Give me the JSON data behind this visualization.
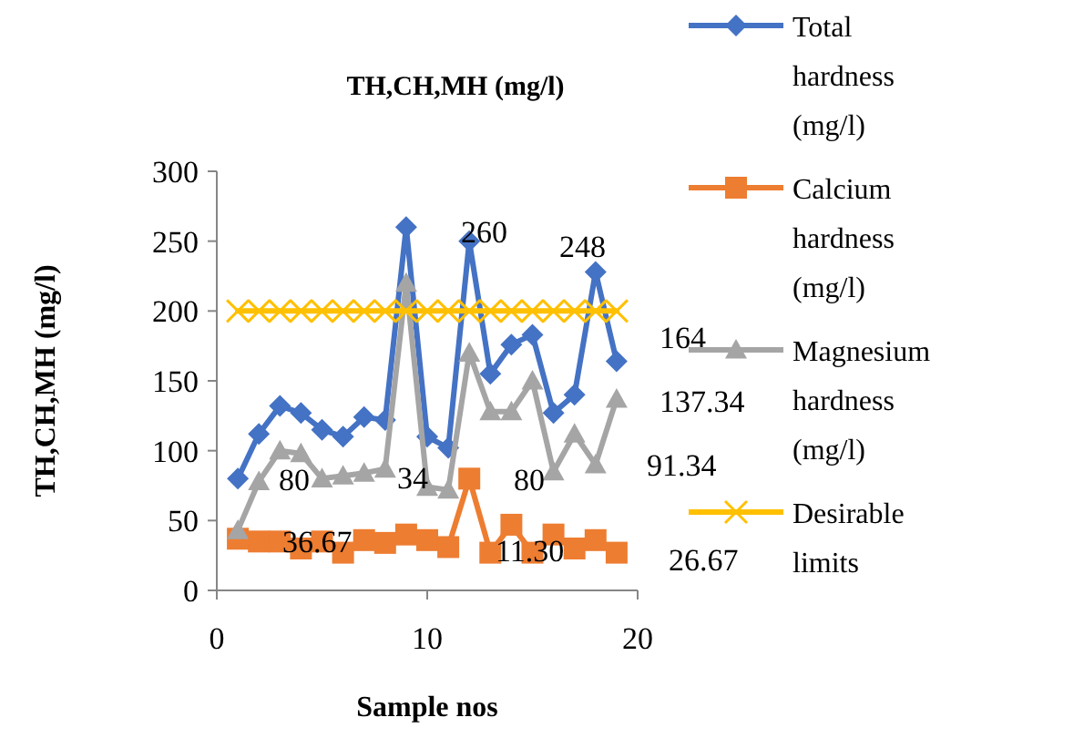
{
  "chart_data": {
    "type": "line",
    "title": "TH,CH,MH (mg/l)",
    "xlabel": "Sample nos",
    "ylabel": "TH,CH,MH (mg/l)",
    "x": [
      1,
      2,
      3,
      4,
      5,
      6,
      7,
      8,
      9,
      10,
      11,
      12,
      13,
      14,
      15,
      16,
      17,
      18,
      19
    ],
    "series": [
      {
        "name": "Total hardness (mg/l)",
        "color": "#4472c4",
        "marker": "diamond",
        "values": [
          80,
          112,
          132,
          127,
          115,
          110,
          124,
          122,
          260,
          110,
          102,
          250,
          155,
          176,
          183,
          127,
          140,
          228,
          164
        ]
      },
      {
        "name": "Calcium hardness (mg/l)",
        "color": "#ed7d31",
        "marker": "square",
        "values": [
          37,
          35,
          35,
          30,
          35,
          27,
          36,
          34,
          40,
          36,
          31,
          80,
          27,
          47,
          27,
          40,
          30,
          36,
          27
        ]
      },
      {
        "name": "Magnesium hardness (mg/l)",
        "color": "#a5a5a5",
        "marker": "triangle",
        "values": [
          43,
          78,
          100,
          98,
          80,
          82,
          84,
          87,
          220,
          74,
          72,
          170,
          128,
          128,
          150,
          85,
          112,
          90,
          137
        ]
      },
      {
        "name": "Desirable limits",
        "color": "#ffc000",
        "marker": "cross",
        "values": [
          200,
          200,
          200,
          200,
          200,
          200,
          200,
          200,
          200,
          200,
          200,
          200,
          200,
          200,
          200,
          200,
          200,
          200,
          200
        ]
      }
    ],
    "xlim": [
      0,
      20
    ],
    "xticks": [
      0,
      10,
      20
    ],
    "ylim": [
      0,
      300
    ],
    "yticks": [
      0,
      50,
      100,
      150,
      200,
      250,
      300
    ],
    "grid": false,
    "legend": "right",
    "annotations": [
      "80",
      "34",
      "80",
      "36.67",
      "11.30",
      "260",
      "248",
      "164",
      "137.34",
      "91.34",
      "26.67"
    ]
  }
}
